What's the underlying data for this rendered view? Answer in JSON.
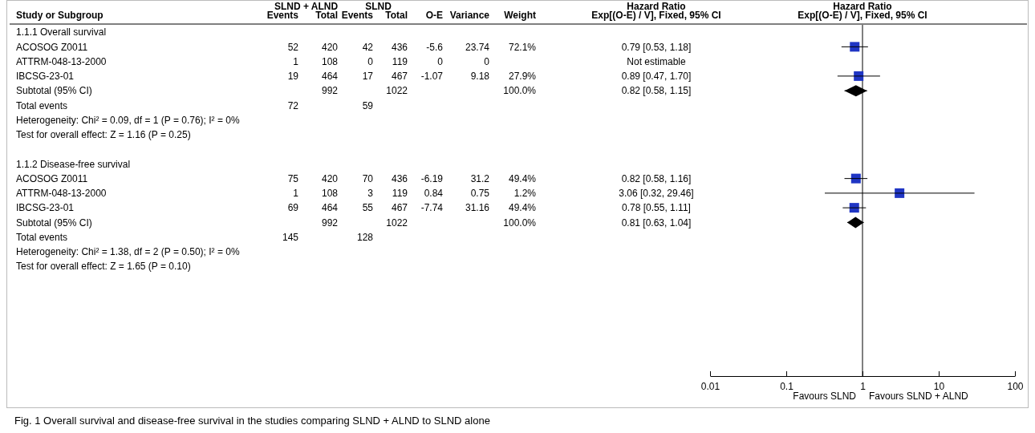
{
  "chart_data": [
    {
      "type": "other",
      "title": "Fig. 1 Overall survival and disease-free survival in the studies comparing SLND + ALND to SLND alone",
      "ylabel": "Study or Subgroup",
      "annotations": [
        "SLND + ALND",
        "SLND",
        "Hazard Ratio"
      ],
      "categories": [
        "Events",
        "Total",
        "Events",
        "Total",
        "O-E",
        "Variance",
        "Weight",
        "Exp[(O-E) / V], Fixed, 95% CI"
      ],
      "y_categories": [
        "1.1.1 Overall survival",
        "ACOSOG Z0011",
        "ATTRM-048-13-2000",
        "IBCSG-23-01",
        "Subtotal (95% CI)",
        "Total events",
        "Heterogeneity: Chi² = 0.09, df = 1 (P = 0.76); I² = 0%",
        "Test for overall effect: Z = 1.16 (P = 0.25)",
        null,
        "1.1.2 Disease-free survival",
        "ACOSOG Z0011",
        "ATTRM-048-13-2000",
        "IBCSG-23-01",
        "Subtotal (95% CI)",
        "Total events",
        "Heterogeneity: Chi² = 1.38, df = 2 (P = 0.50); I² = 0%",
        "Test for overall effect: Z = 1.65 (P = 0.10)"
      ],
      "cell_labels": [
        [
          null,
          null,
          null,
          null,
          null,
          null,
          null,
          null
        ],
        [
          "52",
          "420",
          "42",
          "436",
          "-5.6",
          "23.74",
          "72.1%",
          "0.79 [0.53, 1.18]"
        ],
        [
          "1",
          "108",
          "0",
          "119",
          "0",
          "0",
          null,
          "Not estimable"
        ],
        [
          "19",
          "464",
          "17",
          "467",
          "-1.07",
          "9.18",
          "27.9%",
          "0.89 [0.47, 1.70]"
        ],
        [
          null,
          "992",
          null,
          "1022",
          null,
          null,
          "100.0%",
          "0.82 [0.58, 1.15]"
        ],
        [
          "72",
          null,
          "59",
          null,
          null,
          null,
          null,
          null
        ],
        [
          null,
          null,
          null,
          null,
          null,
          null,
          null,
          null
        ],
        [
          null,
          null,
          null,
          null,
          null,
          null,
          null,
          null
        ],
        [
          null,
          null,
          null,
          null,
          null,
          null,
          null,
          null
        ],
        [
          null,
          null,
          null,
          null,
          null,
          null,
          null,
          null
        ],
        [
          "75",
          "420",
          "70",
          "436",
          "-6.19",
          "31.2",
          "49.4%",
          "0.82 [0.58, 1.16]"
        ],
        [
          "1",
          "108",
          "3",
          "119",
          "0.84",
          "0.75",
          "1.2%",
          "3.06 [0.32, 29.46]"
        ],
        [
          "69",
          "464",
          "55",
          "467",
          "-7.74",
          "31.16",
          "49.4%",
          "0.78 [0.55, 1.11]"
        ],
        [
          null,
          "992",
          null,
          "1022",
          null,
          null,
          "100.0%",
          "0.81 [0.63, 1.04]"
        ],
        [
          "145",
          null,
          "128",
          null,
          null,
          null,
          null,
          null
        ],
        [
          null,
          null,
          null,
          null,
          null,
          null,
          null,
          null
        ],
        [
          null,
          null,
          null,
          null,
          null,
          null,
          null,
          null
        ]
      ]
    },
    {
      "type": "scatter",
      "orientation": "horizontal",
      "title": "Hazard Ratio",
      "subtitle": "Exp[(O-E) / V], Fixed, 95% CI",
      "categories": [
        null,
        null,
        null,
        null,
        null,
        null,
        null,
        null,
        null,
        null,
        null,
        null,
        null,
        null,
        null,
        null,
        null,
        null,
        null,
        null,
        null,
        null,
        null,
        null
      ],
      "log": "x",
      "xlim": [
        0.01,
        100
      ],
      "xticks": [
        0.01,
        0.1,
        1,
        10,
        100
      ],
      "ref_lines": [
        {
          "axis": "x",
          "value": 1,
          "color": "#000000"
        }
      ],
      "annotations": [
        "Favours SLND",
        "Favours SLND + ALND"
      ],
      "series": [
        {
          "marker": "square",
          "color": "#1f35c4",
          "values": [
            null,
            0.79,
            null,
            0.89,
            null,
            null,
            null,
            null,
            null,
            null,
            0.82,
            3.06,
            0.78,
            null,
            null,
            null,
            null,
            null,
            null,
            null,
            null,
            null,
            null,
            null
          ],
          "errors": [
            null,
            [
              0.53,
              1.18
            ],
            null,
            [
              0.47,
              1.7
            ],
            null,
            null,
            null,
            null,
            null,
            null,
            [
              0.58,
              1.16
            ],
            [
              0.32,
              29.46
            ],
            [
              0.55,
              1.11
            ],
            null,
            null,
            null,
            null,
            null,
            null,
            null,
            null,
            null,
            null,
            null
          ]
        },
        {
          "marker": "diamond",
          "color": "#000000",
          "values": [
            null,
            null,
            null,
            null,
            0.82,
            null,
            null,
            null,
            null,
            null,
            null,
            null,
            null,
            0.81,
            null,
            null,
            null,
            null,
            null,
            null,
            null,
            null,
            null,
            null
          ],
          "errors": [
            null,
            null,
            null,
            null,
            [
              0.58,
              1.15
            ],
            null,
            null,
            null,
            null,
            null,
            null,
            null,
            null,
            [
              0.63,
              1.04
            ],
            null,
            null,
            null,
            null,
            null,
            null,
            null,
            null,
            null,
            null
          ]
        }
      ]
    }
  ]
}
